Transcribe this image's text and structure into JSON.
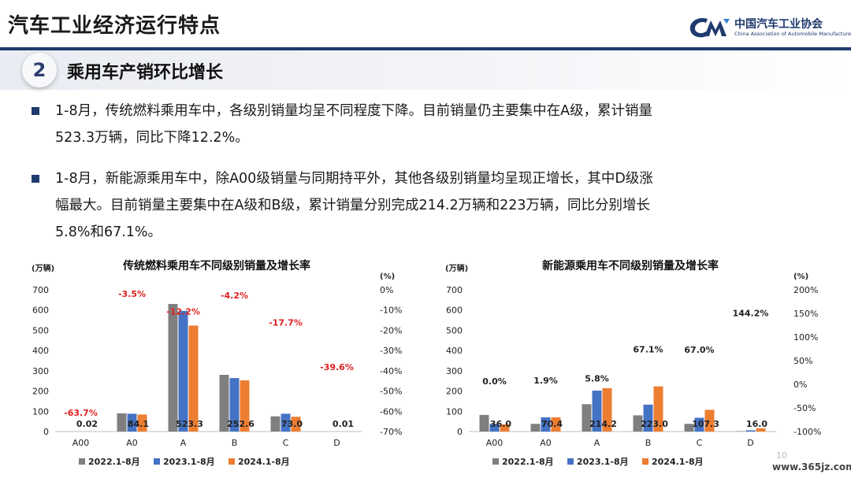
{
  "header": {
    "title": "汽车工业经济运行特点",
    "logo_cn": "中国汽车工业协会",
    "logo_en": "China Association of Automobile Manufacturers"
  },
  "section": {
    "number": "2",
    "title": "乘用车产销环比增长"
  },
  "bullets": [
    {
      "line1": "1-8月，传统燃料乘用车中，各级别销量均呈不同程度下降。目前销量仍主要集中在A级，累计销量",
      "line2": "523.3万辆，同比下降12.2%。"
    },
    {
      "line1": "1-8月，新能源乘用车中，除A00级销量与同期持平外，其他各级别销量均呈现正增长，其中D级涨",
      "line2": "幅最大。目前销量主要集中在A级和B级，累计销量分别完成214.2万辆和223万辆，同比分别增长",
      "line3": "5.8%和67.1%。"
    }
  ],
  "colors": {
    "s2022": "#7f7f7f",
    "s2023": "#4472c4",
    "s2024": "#ed7d31",
    "neg": "#e02020",
    "navy": "#1f3a6e"
  },
  "chart_data": [
    {
      "type": "bar",
      "title": "传统燃料乘用车不同级别销量及增长率",
      "ylabel": "(万辆)",
      "y2label": "(%)",
      "categories": [
        "A00",
        "A0",
        "A",
        "B",
        "C",
        "D"
      ],
      "ylim": [
        0,
        700
      ],
      "yticks": [
        "0",
        "100",
        "200",
        "300",
        "400",
        "500",
        "600",
        "700"
      ],
      "y2lim": [
        -70,
        0
      ],
      "y2ticks": [
        "0%",
        "-10%",
        "-20%",
        "-30%",
        "-40%",
        "-50%",
        "-60%",
        "-70%"
      ],
      "series": [
        {
          "name": "2022.1-8月",
          "values": [
            0.1,
            90,
            630,
            280,
            75,
            0.05
          ]
        },
        {
          "name": "2023.1-8月",
          "values": [
            0.05,
            88,
            596,
            264,
            88,
            0.02
          ]
        },
        {
          "name": "2024.1-8月",
          "values": [
            0.02,
            84.1,
            523.3,
            252.6,
            73.0,
            0.01
          ]
        }
      ],
      "value_labels": [
        "0.02",
        "84.1",
        "523.3",
        "252.6",
        "73.0",
        "0.01"
      ],
      "growth": [
        -63.7,
        -3.5,
        -12.2,
        -4.2,
        -17.7,
        -39.6
      ],
      "growth_labels": [
        "-63.7%",
        "-3.5%",
        "-12.2%",
        "-4.2%",
        "-17.7%",
        "-39.6%"
      ],
      "legend": [
        "2022.1-8月",
        "2023.1-8月",
        "2024.1-8月"
      ]
    },
    {
      "type": "bar",
      "title": "新能源乘用车不同级别销量及增长率",
      "ylabel": "(万辆)",
      "y2label": "(%)",
      "categories": [
        "A00",
        "A0",
        "A",
        "B",
        "C",
        "D"
      ],
      "ylim": [
        0,
        700
      ],
      "yticks": [
        "0",
        "100",
        "200",
        "300",
        "400",
        "500",
        "600",
        "700"
      ],
      "y2lim": [
        -100,
        200
      ],
      "y2ticks": [
        "200%",
        "150%",
        "100%",
        "50%",
        "0%",
        "-50%",
        "-100%"
      ],
      "series": [
        {
          "name": "2022.1-8月",
          "values": [
            82,
            38,
            135,
            80,
            38,
            2
          ]
        },
        {
          "name": "2023.1-8月",
          "values": [
            38,
            70,
            202,
            133,
            68,
            6
          ]
        },
        {
          "name": "2024.1-8月",
          "values": [
            36.0,
            70.4,
            214.2,
            223.0,
            107.3,
            16.0
          ]
        }
      ],
      "value_labels": [
        "36.0",
        "70.4",
        "214.2",
        "223.0",
        "107.3",
        "16.0"
      ],
      "growth": [
        0.0,
        1.9,
        5.8,
        67.1,
        67.0,
        144.2
      ],
      "growth_labels": [
        "0.0%",
        "1.9%",
        "5.8%",
        "67.1%",
        "67.0%",
        "144.2%"
      ],
      "legend": [
        "2022.1-8月",
        "2023.1-8月",
        "2024.1-8月"
      ]
    }
  ],
  "footer": {
    "page": "10",
    "watermark": "www.365jz.com"
  }
}
